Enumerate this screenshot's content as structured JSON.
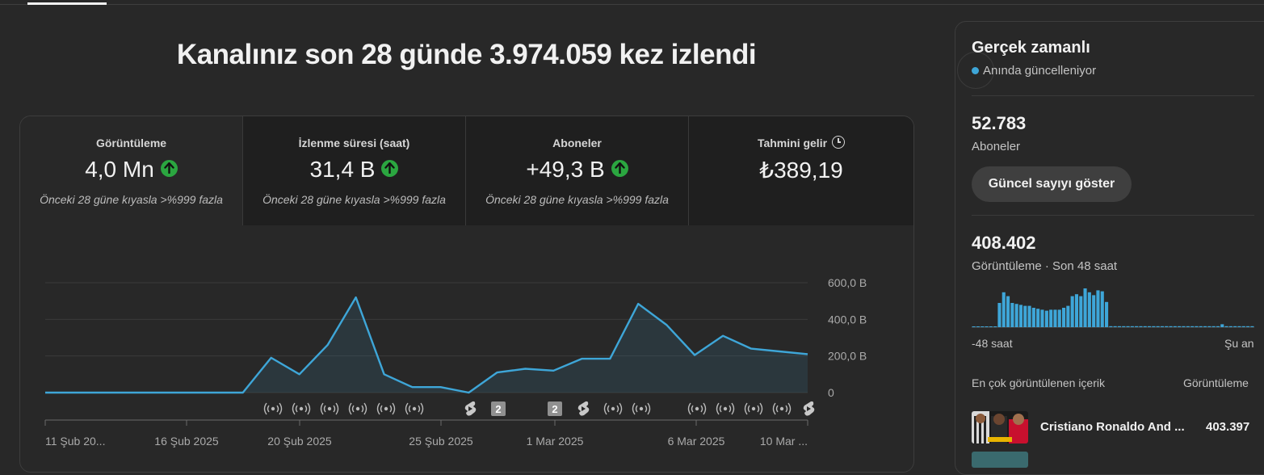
{
  "headline": "Kanalınız son 28 günde 3.974.059 kez izlendi",
  "metrics": [
    {
      "label": "Görüntüleme",
      "value": "4,0 Mn",
      "trend": "up",
      "comparison": "Önceki 28 güne kıyasla >%999 fazla"
    },
    {
      "label": "İzlenme süresi (saat)",
      "value": "31,4 B",
      "trend": "up",
      "comparison": "Önceki 28 güne kıyasla >%999 fazla"
    },
    {
      "label": "Aboneler",
      "value": "+49,3 B",
      "trend": "up",
      "comparison": "Önceki 28 güne kıyasla >%999 fazla"
    },
    {
      "label": "Tahmini gelir",
      "value": "₺389,19",
      "icon": "clock-icon"
    }
  ],
  "chart_data": {
    "type": "area",
    "x_tick_labels": [
      "11 Şub 20...",
      "16 Şub 2025",
      "20 Şub 2025",
      "25 Şub 2025",
      "1 Mar 2025",
      "6 Mar 2025",
      "10 Mar ..."
    ],
    "y_tick_labels": [
      "600,0 B",
      "400,0 B",
      "200,0 B",
      "0"
    ],
    "ylim": [
      0,
      600000
    ],
    "values": [
      0,
      0,
      0,
      0,
      0,
      0,
      0,
      0,
      190000,
      100000,
      260000,
      520000,
      100000,
      30000,
      30000,
      0,
      110000,
      130000,
      120000,
      185000,
      185000,
      485000,
      370000,
      205000,
      310000,
      240000,
      225000,
      210000
    ],
    "color": "#3ea6d8",
    "grid": true,
    "event_markers": [
      "live-icon",
      "live-icon",
      "live-icon",
      "live-icon",
      "live-icon",
      "live-icon",
      "shorts-icon",
      "2",
      "2",
      "shorts-icon",
      "live-icon",
      "live-icon",
      "live-icon",
      "live-icon",
      "live-icon",
      "live-icon",
      "shorts-icon"
    ]
  },
  "realtime": {
    "title": "Gerçek zamanlı",
    "subtitle": "Anında güncelleniyor",
    "subscribers_value": "52.783",
    "subscribers_label": "Aboneler",
    "show_count_button": "Güncel sayıyı göster",
    "views_value": "408.402",
    "views_label": "Görüntüleme · Son 48 saat",
    "mini_chart_left": "-48 saat",
    "mini_chart_right": "Şu an",
    "mini_values": [
      0,
      0,
      0,
      0,
      0,
      0,
      25,
      36,
      32,
      25,
      24,
      23,
      22,
      22,
      20,
      19,
      18,
      17,
      18,
      18,
      18,
      20,
      22,
      32,
      34,
      32,
      40,
      36,
      33,
      38,
      37,
      26,
      1,
      1,
      1,
      1,
      1,
      1,
      1,
      1,
      1,
      1,
      1,
      1,
      1,
      1,
      1,
      1,
      1,
      1,
      1,
      1,
      1,
      1,
      1,
      1,
      1,
      1,
      3,
      1,
      1,
      1,
      1,
      1,
      1,
      1
    ],
    "top_content_label": "En çok görüntülenen içerik",
    "top_content_col": "Görüntüleme",
    "top_video_title": "Cristiano Ronaldo And ...",
    "top_video_views": "403.397"
  }
}
